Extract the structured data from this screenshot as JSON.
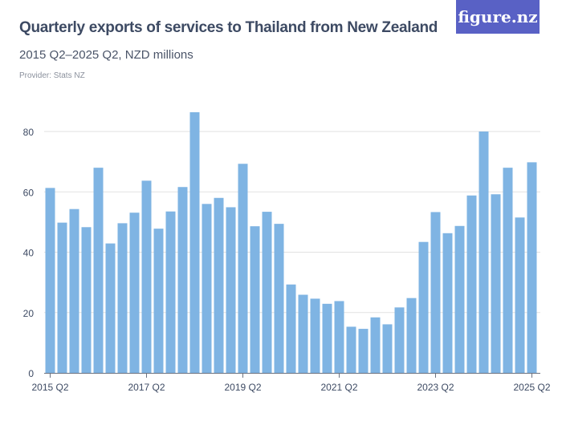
{
  "header": {
    "title": "Quarterly exports of services to Thailand from New Zealand",
    "subtitle": "2015 Q2–2025 Q2, NZD millions",
    "provider": "Provider: Stats NZ",
    "logo": "figure.nz"
  },
  "chart_data": {
    "type": "bar",
    "title": "Quarterly exports of services to Thailand from New Zealand",
    "subtitle": "2015 Q2–2025 Q2, NZD millions",
    "xlabel": "",
    "ylabel": "",
    "ylim": [
      0,
      80
    ],
    "yticks": [
      0,
      20,
      40,
      60,
      80
    ],
    "grid": true,
    "xticks": [
      "2015 Q2",
      "2017 Q2",
      "2019 Q2",
      "2021 Q2",
      "2023 Q2",
      "2025 Q2"
    ],
    "bar_color": "#7fb4e3",
    "categories": [
      "2015 Q2",
      "2015 Q3",
      "2015 Q4",
      "2016 Q1",
      "2016 Q2",
      "2016 Q3",
      "2016 Q4",
      "2017 Q1",
      "2017 Q2",
      "2017 Q3",
      "2017 Q4",
      "2018 Q1",
      "2018 Q2",
      "2018 Q3",
      "2018 Q4",
      "2019 Q1",
      "2019 Q2",
      "2019 Q3",
      "2019 Q4",
      "2020 Q1",
      "2020 Q2",
      "2020 Q3",
      "2020 Q4",
      "2021 Q1",
      "2021 Q2",
      "2021 Q3",
      "2021 Q4",
      "2022 Q1",
      "2022 Q2",
      "2022 Q3",
      "2022 Q4",
      "2023 Q1",
      "2023 Q2",
      "2023 Q3",
      "2023 Q4",
      "2024 Q1",
      "2024 Q2",
      "2024 Q3",
      "2024 Q4",
      "2025 Q1",
      "2025 Q2"
    ],
    "values": [
      61.3,
      49.8,
      54.3,
      48.3,
      68.0,
      42.9,
      49.6,
      53.1,
      63.7,
      47.8,
      53.5,
      61.6,
      86.4,
      56.0,
      58.0,
      54.9,
      69.3,
      48.6,
      53.4,
      49.4,
      29.3,
      25.9,
      24.6,
      22.9,
      23.8,
      15.3,
      14.6,
      18.4,
      16.1,
      21.7,
      24.8,
      43.4,
      53.3,
      46.3,
      48.7,
      58.8,
      80.0,
      59.2,
      68.0,
      51.5,
      69.8
    ]
  }
}
